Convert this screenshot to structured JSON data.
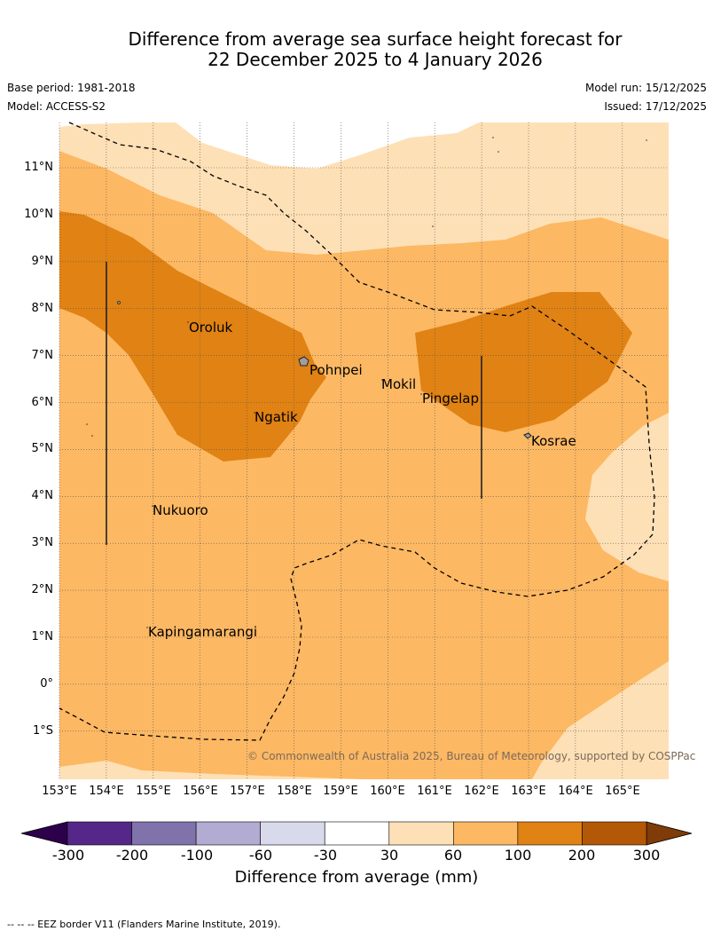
{
  "title": {
    "line1": "Difference from average sea surface height forecast for",
    "line2": "22 December 2025 to 4 January 2026"
  },
  "meta": {
    "base_period": "Base period: 1981-2018",
    "model": "Model: ACCESS-S2",
    "model_run": "Model run: 15/12/2025",
    "issued": "Issued: 17/12/2025"
  },
  "axes": {
    "lat_labels": [
      "11°N",
      "10°N",
      "9°N",
      "8°N",
      "7°N",
      "6°N",
      "5°N",
      "4°N",
      "3°N",
      "2°N",
      "1°N",
      "0°",
      "1°S"
    ],
    "lon_labels": [
      "153°E",
      "154°E",
      "155°E",
      "156°E",
      "157°E",
      "158°E",
      "159°E",
      "160°E",
      "161°E",
      "162°E",
      "163°E",
      "164°E",
      "165°E"
    ]
  },
  "places": [
    "Oroluk",
    "Pohnpei",
    "Mokil",
    "Pingelap",
    "Ngatik",
    "Kosrae",
    "Nukuoro",
    "Kapingamarangi"
  ],
  "copyright": "© Commonwealth of Australia 2025, Bureau of Meteorology, supported by COSPPac",
  "colorbar": {
    "ticks": [
      "-300",
      "-200",
      "-100",
      "-60",
      "-30",
      "30",
      "60",
      "100",
      "200",
      "300"
    ],
    "colors": [
      "#542788",
      "#8073ac",
      "#b2abd2",
      "#d8daeb",
      "#ffffff",
      "#fee0b6",
      "#fdb863",
      "#e08214",
      "#b35806"
    ],
    "low_extend": "#2d004b",
    "high_extend": "#7f3b08",
    "title": "Difference from average (mm)"
  },
  "footer": "--  --  -- EEZ border V11 (Flanders Marine Institute, 2019)."
}
